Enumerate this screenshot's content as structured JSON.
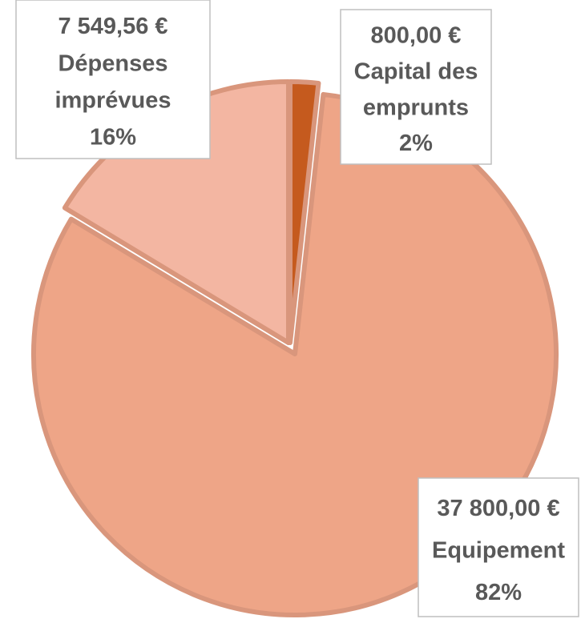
{
  "chart_data": {
    "type": "pie",
    "categories": [
      "Capital des emprunts",
      "Equipement",
      "Dépenses imprévues"
    ],
    "values": [
      800,
      37800,
      7549.56
    ],
    "value_labels": [
      "800,00 €",
      "37 800,00 €",
      "7 549,56 €"
    ],
    "percent_labels": [
      "2%",
      "82%",
      "16%"
    ],
    "colors": [
      "#c55a1e",
      "#eea587",
      "#f3b6a2"
    ],
    "start_angle": 0,
    "direction": "clockwise"
  }
}
